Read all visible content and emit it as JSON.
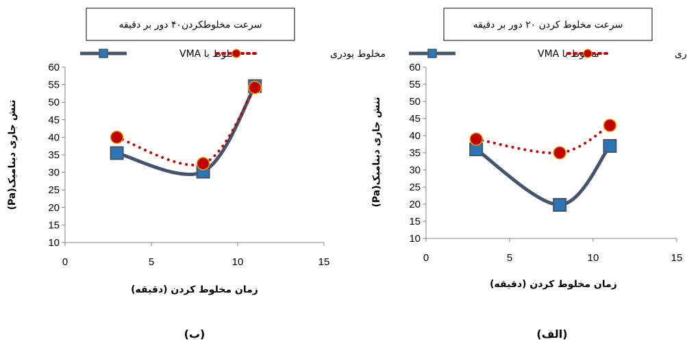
{
  "colors": {
    "vma": "#44546A",
    "marker_blue": "#2E75B6",
    "powder": "#C00000",
    "axis": "#808080"
  },
  "chart_data": [
    {
      "type": "line",
      "title": "سرعت مخلوطکردن۴۰ دور بر دقیقه",
      "xlabel": "زمان مخلوط کردن (دقیقه)",
      "ylabel": "تنش جاری دینامیک(Pa)",
      "xlim": [
        0,
        15
      ],
      "ylim": [
        10,
        60
      ],
      "xticks": [
        0,
        5,
        10,
        15
      ],
      "yticks": [
        10,
        15,
        20,
        25,
        30,
        35,
        40,
        45,
        50,
        55,
        60
      ],
      "legend_position": "top",
      "caption": "(ب)",
      "series": [
        {
          "name": "مخلوط با VMA",
          "x": [
            3,
            8,
            11
          ],
          "y": [
            35.5,
            30.2,
            54.6
          ]
        },
        {
          "name": "مخلوط پودری",
          "x": [
            3,
            8,
            11
          ],
          "y": [
            40.0,
            32.5,
            54.2
          ]
        }
      ]
    },
    {
      "type": "line",
      "title": "سرعت مخلوط کردن ۲۰ دور بر دقیقه",
      "xlabel": "زمان مخلوط کردن (دقیقه)",
      "ylabel": "تنش جاری دینامیک(Pa)",
      "xlim": [
        0,
        15
      ],
      "ylim": [
        10,
        60
      ],
      "xticks": [
        0,
        5,
        10,
        15
      ],
      "yticks": [
        10,
        15,
        20,
        25,
        30,
        35,
        40,
        45,
        50,
        55,
        60
      ],
      "legend_position": "top",
      "caption": "(الف)",
      "series": [
        {
          "name": "مخلوط با VMA",
          "x": [
            3,
            8,
            11
          ],
          "y": [
            36.0,
            19.8,
            37.0
          ]
        },
        {
          "name": "مخلوط پودری",
          "x": [
            3,
            8,
            11
          ],
          "y": [
            39.0,
            35.0,
            43.0
          ]
        }
      ]
    }
  ]
}
